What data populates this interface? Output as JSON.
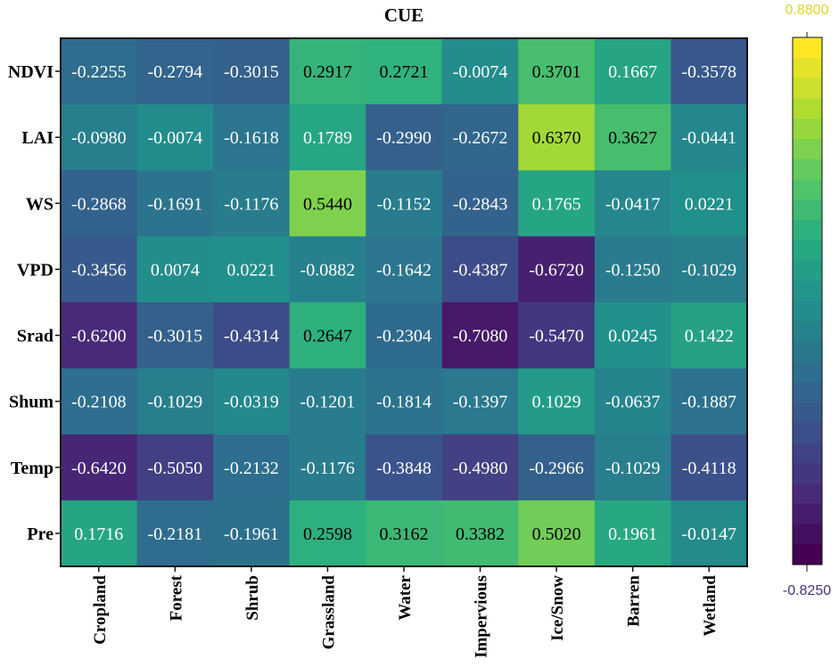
{
  "chart_data": {
    "type": "heatmap",
    "title": "CUE",
    "rows": [
      "NDVI",
      "LAI",
      "WS",
      "VPD",
      "Srad",
      "Shum",
      "Temp",
      "Pre"
    ],
    "columns": [
      "Cropland",
      "Forest",
      "Shrub",
      "Grassland",
      "Water",
      "Impervious",
      "Ice/Snow",
      "Barren",
      "Wetland"
    ],
    "values": [
      [
        -0.2255,
        -0.2794,
        -0.3015,
        0.2917,
        0.2721,
        -0.0074,
        0.3701,
        0.1667,
        -0.3578
      ],
      [
        -0.098,
        -0.0074,
        -0.1618,
        0.1789,
        -0.299,
        -0.2672,
        0.637,
        0.3627,
        -0.0441
      ],
      [
        -0.2868,
        -0.1691,
        -0.1176,
        0.544,
        -0.1152,
        -0.2843,
        0.1765,
        -0.0417,
        0.0221
      ],
      [
        -0.3456,
        0.0074,
        0.0221,
        -0.0882,
        -0.1642,
        -0.4387,
        -0.672,
        -0.125,
        -0.1029
      ],
      [
        -0.62,
        -0.3015,
        -0.4314,
        0.2647,
        -0.2304,
        -0.708,
        -0.547,
        0.0245,
        0.1422
      ],
      [
        -0.2108,
        -0.1029,
        -0.0319,
        -0.1201,
        -0.1814,
        -0.1397,
        0.1029,
        -0.0637,
        -0.1887
      ],
      [
        -0.642,
        -0.505,
        -0.2132,
        -0.1176,
        -0.3848,
        -0.498,
        -0.2966,
        -0.1029,
        -0.4118
      ],
      [
        0.1716,
        -0.2181,
        -0.1961,
        0.2598,
        0.3162,
        0.3382,
        0.502,
        0.1961,
        -0.0147
      ]
    ],
    "labels": [
      [
        "-0.2255",
        "-0.2794",
        "-0.3015",
        "0.2917",
        "0.2721",
        "-0.0074",
        "0.3701",
        "0.1667",
        "-0.3578"
      ],
      [
        "-0.0980",
        "-0.0074",
        "-0.1618",
        "0.1789",
        "-0.2990",
        "-0.2672",
        "0.6370",
        "0.3627",
        "-0.0441"
      ],
      [
        "-0.2868",
        "-0.1691",
        "-0.1176",
        "0.5440",
        "-0.1152",
        "-0.2843",
        "0.1765",
        "-0.0417",
        "0.0221"
      ],
      [
        "-0.3456",
        "0.0074",
        "0.0221",
        "-0.0882",
        "-0.1642",
        "-0.4387",
        "-0.6720",
        "-0.1250",
        "-0.1029"
      ],
      [
        "-0.6200",
        "-0.3015",
        "-0.4314",
        "0.2647",
        "-0.2304",
        "-0.7080",
        "-0.5470",
        "0.0245",
        "0.1422"
      ],
      [
        "-0.2108",
        "-0.1029",
        "-0.0319",
        "-0.1201",
        "-0.1814",
        "-0.1397",
        "0.1029",
        "-0.0637",
        "-0.1887"
      ],
      [
        "-0.6420",
        "-0.5050",
        "-0.2132",
        "-0.1176",
        "-0.3848",
        "-0.4980",
        "-0.2966",
        "-0.1029",
        "-0.4118"
      ],
      [
        "0.1716",
        "-0.2181",
        "-0.1961",
        "0.2598",
        "0.3162",
        "0.3382",
        "0.5020",
        "0.1961",
        "-0.0147"
      ]
    ],
    "colorbar": {
      "min": -0.825,
      "max": 0.88,
      "min_label": "-0.8250",
      "max_label": "0.8800",
      "colormap": "viridis",
      "min_label_color": "#46317e",
      "max_label_color": "#e6d22c"
    },
    "dark_text_color": "#000000",
    "light_text_color": "#ffffff"
  }
}
